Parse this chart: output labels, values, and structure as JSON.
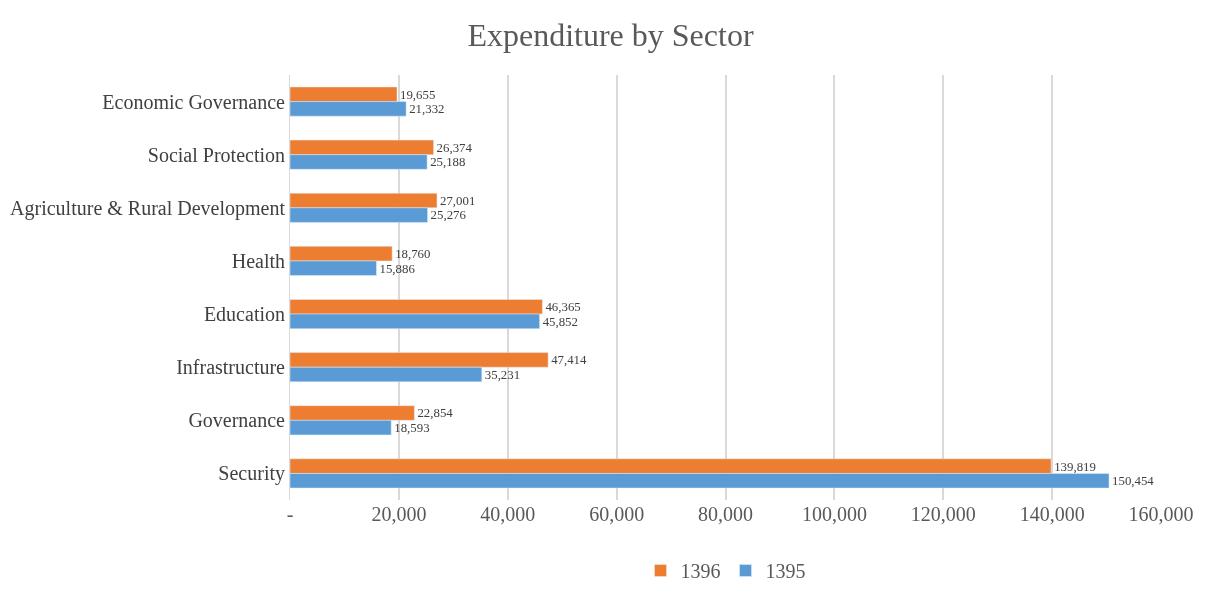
{
  "chart_data": {
    "type": "bar",
    "title": "Expenditure by Sector",
    "orientation": "horizontal",
    "categories": [
      "Economic Governance",
      "Social Protection",
      "Agriculture & Rural Development",
      "Health",
      "Education",
      "Infrastructure",
      "Governance",
      "Security"
    ],
    "series": [
      {
        "name": "1396",
        "color": "#ed7d31",
        "values": [
          19655,
          26374,
          27001,
          18760,
          46365,
          47414,
          22854,
          139819
        ],
        "value_labels": [
          "19,655",
          "26,374",
          "27,001",
          "18,760",
          "46,365",
          "47,414",
          "22,854",
          "139,819"
        ]
      },
      {
        "name": "1395",
        "color": "#5b9bd5",
        "values": [
          21332,
          25188,
          25276,
          15886,
          45852,
          35231,
          18593,
          150454
        ],
        "value_labels": [
          "21,332",
          "25,188",
          "25,276",
          "15,886",
          "45,852",
          "35,231",
          "18,593",
          "150,454"
        ]
      }
    ],
    "xlim": [
      0,
      160000
    ],
    "xticks": [
      {
        "value": 0,
        "label": "-"
      },
      {
        "value": 20000,
        "label": "20,000"
      },
      {
        "value": 40000,
        "label": "40,000"
      },
      {
        "value": 60000,
        "label": "60,000"
      },
      {
        "value": 80000,
        "label": "80,000"
      },
      {
        "value": 100000,
        "label": "100,000"
      },
      {
        "value": 120000,
        "label": "120,000"
      },
      {
        "value": 140000,
        "label": "140,000"
      },
      {
        "value": 160000,
        "label": "160,000"
      }
    ],
    "grid": "x",
    "legend": "bottom"
  }
}
